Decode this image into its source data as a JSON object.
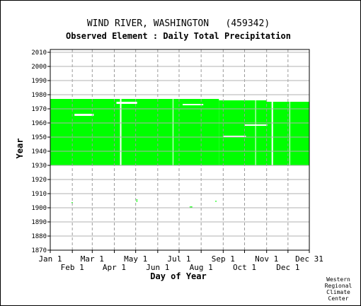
{
  "chart_data": {
    "type": "heatmap",
    "title": "WIND RIVER, WASHINGTON   (459342)",
    "subtitle": "Observed Element : Daily Total Precipitation",
    "xlabel": "Day of Year",
    "ylabel": "Year",
    "xlim": [
      1,
      365
    ],
    "ylim": [
      1870,
      2012
    ],
    "grid": true,
    "color": "#00ff00",
    "x_ticks_row1": [
      {
        "label": "Jan 1",
        "day": 1
      },
      {
        "label": "Mar 1",
        "day": 60
      },
      {
        "label": "May 1",
        "day": 121
      },
      {
        "label": "Jul 1",
        "day": 182
      },
      {
        "label": "Sep 1",
        "day": 244
      },
      {
        "label": "Nov 1",
        "day": 305
      },
      {
        "label": "Dec 31",
        "day": 365
      }
    ],
    "x_ticks_row2": [
      {
        "label": "Feb 1",
        "day": 32
      },
      {
        "label": "Apr 1",
        "day": 91
      },
      {
        "label": "Jun 1",
        "day": 152
      },
      {
        "label": "Aug 1",
        "day": 213
      },
      {
        "label": "Oct 1",
        "day": 274
      },
      {
        "label": "Dec 1",
        "day": 335
      }
    ],
    "y_ticks": [
      1870,
      1880,
      1890,
      1900,
      1910,
      1920,
      1930,
      1940,
      1950,
      1960,
      1970,
      1980,
      1990,
      2000,
      2010
    ],
    "coverage_blocks": [
      {
        "day_start": 1,
        "day_end": 238,
        "year_start": 1930,
        "year_end": 1977
      },
      {
        "day_start": 238,
        "day_end": 365,
        "year_start": 1930,
        "year_end": 1976
      }
    ],
    "gaps": [
      {
        "day_start": 35,
        "day_end": 62,
        "year_start": 1965,
        "year_end": 1966.5
      },
      {
        "day_start": 94,
        "day_end": 123,
        "year_start": 1973.5,
        "year_end": 1975
      },
      {
        "day_start": 187,
        "day_end": 216,
        "year_start": 1972.5,
        "year_end": 1973.5
      },
      {
        "day_start": 244,
        "day_end": 276,
        "year_start": 1950,
        "year_end": 1951
      },
      {
        "day_start": 274,
        "day_end": 306,
        "year_start": 1958,
        "year_end": 1959
      },
      {
        "day_start": 305,
        "day_end": 365,
        "year_start": 1975,
        "year_end": 1977
      },
      {
        "day_start": 99,
        "day_end": 101,
        "year_start": 1930,
        "year_end": 1977
      },
      {
        "day_start": 173,
        "day_end": 174,
        "year_start": 1930,
        "year_end": 1977
      },
      {
        "day_start": 289,
        "day_end": 290,
        "year_start": 1930,
        "year_end": 1977
      },
      {
        "day_start": 337,
        "day_end": 338,
        "year_start": 1930,
        "year_end": 1977
      },
      {
        "day_start": 312,
        "day_end": 314,
        "year_start": 1930,
        "year_end": 1977
      }
    ],
    "isolated_points": [
      {
        "day": 31,
        "year": 1904
      },
      {
        "day": 122,
        "year": 1905
      },
      {
        "day": 122,
        "year": 1906
      },
      {
        "day": 197,
        "year": 1901
      },
      {
        "day": 199,
        "year": 1901
      },
      {
        "day": 233,
        "year": 1905
      }
    ]
  },
  "credit": [
    "Western",
    "Regional",
    "Climate",
    "Center"
  ]
}
